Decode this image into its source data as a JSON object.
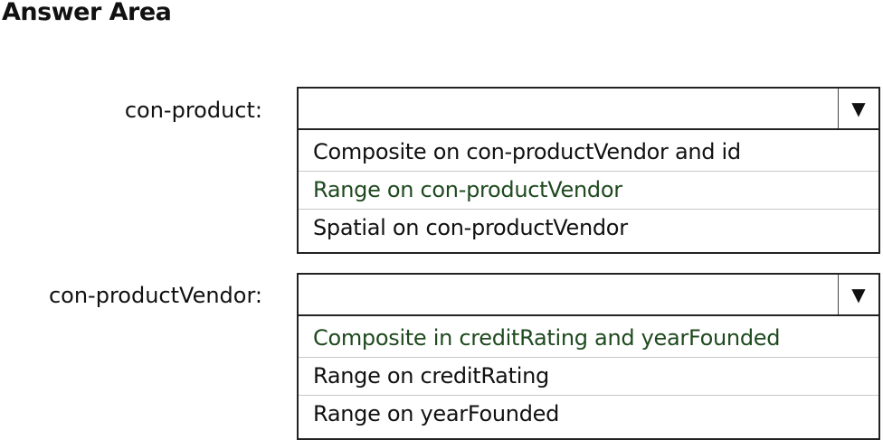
{
  "title": "Answer Area",
  "dropdowns": [
    {
      "label": "con-product:",
      "selected": "",
      "options": [
        "Composite on con-productVendor and id",
        "Range on con-productVendor",
        "Spatial on con-productVendor"
      ],
      "highlighted_index": 1
    },
    {
      "label": "con-productVendor:",
      "selected": "",
      "options": [
        "Composite in creditRating and yearFounded",
        "Range on creditRating",
        "Range on yearFounded"
      ],
      "highlighted_index": 0
    }
  ],
  "colors": {
    "highlight_text": "#1f4a1f"
  },
  "icons": {
    "arrow": "▼"
  }
}
